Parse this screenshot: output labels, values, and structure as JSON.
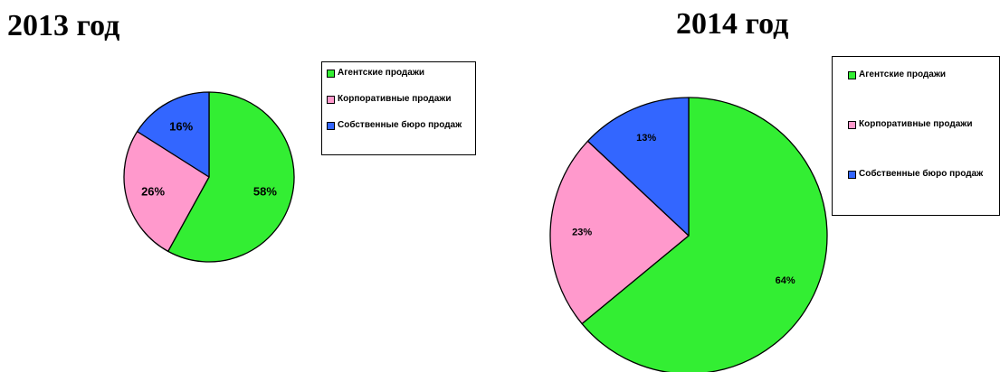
{
  "colors": {
    "agency": "#33ee33",
    "corporate": "#ff99cc",
    "own": "#3366ff"
  },
  "chart_data": [
    {
      "type": "pie",
      "title": "2013 год",
      "categories": [
        "Агентские продажи",
        "Корпоративные продажи",
        "Собственные бюро продаж"
      ],
      "values": [
        58,
        26,
        16
      ],
      "labels": [
        "58%",
        "26%",
        "16%"
      ],
      "legend_placement": "right"
    },
    {
      "type": "pie",
      "title": "2014 год",
      "categories": [
        "Агентские продажи",
        "Корпоративные продажи",
        "Собственные бюро продаж"
      ],
      "values": [
        64,
        23,
        13
      ],
      "labels": [
        "64%",
        "23%",
        "13%"
      ],
      "legend_placement": "right"
    }
  ]
}
